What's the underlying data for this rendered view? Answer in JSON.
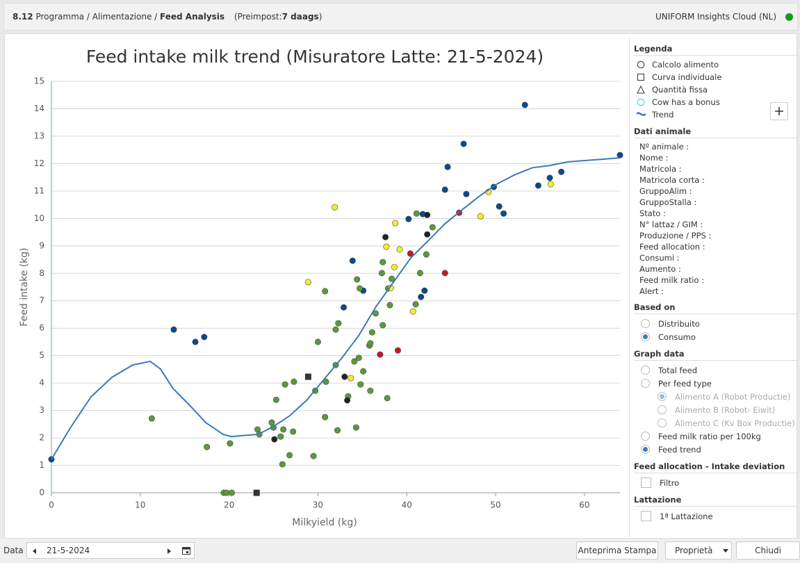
{
  "header": {
    "code": "8.12",
    "crumbs": "Programma / Alimentazione /",
    "page": "Feed Analysis",
    "preset_open": "(Preimpost:",
    "preset": "7 daags",
    "preset_close": ")",
    "app": "UNIFORM Insights Cloud (NL)"
  },
  "chart_data": {
    "type": "scatter",
    "title": "Feed intake milk trend (Misuratore Latte: 21-5-2024)",
    "x_label": "Milkyield (kg)",
    "y_label": "Feed intake (kg)",
    "xlim": [
      0,
      64
    ],
    "ylim": [
      0,
      15
    ],
    "xticks": [
      0,
      10,
      20,
      30,
      40,
      50,
      60
    ],
    "yticks": [
      0,
      1,
      2,
      3,
      4,
      5,
      6,
      7,
      8,
      9,
      10,
      11,
      12,
      13,
      14,
      15
    ],
    "grid": true,
    "series": [
      {
        "color": "#0b4a8c",
        "marker": "circle",
        "x": [
          0,
          13.77,
          16.2,
          17.2,
          33.9,
          32.9,
          35.1,
          40.2,
          41.8,
          41.6,
          42.0,
          44.3,
          44.6,
          46.4,
          46.7,
          49.8,
          50.4,
          50.9,
          53.3,
          54.8,
          56.1,
          57.4,
          64.0
        ],
        "values": [
          1.22,
          5.95,
          5.5,
          5.68,
          8.46,
          6.76,
          7.37,
          9.98,
          10.16,
          7.14,
          7.37,
          11.05,
          11.88,
          12.72,
          10.89,
          11.15,
          10.44,
          10.18,
          14.14,
          11.2,
          11.48,
          11.7,
          12.31
        ]
      },
      {
        "color": "#5b9a3b",
        "marker": "circle",
        "x": [
          11.3,
          17.5,
          20.1,
          19.4,
          19.7,
          20.3,
          23.2,
          23.4,
          24.8,
          25.0,
          25.3,
          25.8,
          26.1,
          26.0,
          26.3,
          26.8,
          27.2,
          27.3,
          29.5,
          29.7,
          30.0,
          30.8,
          30.8,
          30.9,
          32.0,
          32.0,
          32.3,
          32.2,
          33.4,
          34.1,
          34.3,
          34.4,
          34.6,
          34.7,
          34.8,
          35.1,
          35.8,
          35.9,
          36.1,
          35.9,
          36.5,
          37.2,
          37.3,
          37.3,
          37.9,
          37.8,
          38.1,
          38.3,
          41.0,
          41.1,
          41.5,
          42.2,
          42.9
        ],
        "values": [
          2.71,
          1.67,
          1.8,
          0,
          0,
          0,
          2.31,
          2.13,
          2.56,
          2.38,
          3.39,
          2.05,
          2.31,
          1.04,
          3.95,
          1.37,
          2.23,
          4.05,
          1.34,
          3.72,
          5.5,
          7.35,
          2.76,
          4.05,
          4.66,
          5.95,
          6.18,
          2.28,
          3.52,
          4.79,
          2.38,
          7.78,
          4.92,
          7.45,
          3.95,
          4.43,
          5.37,
          5.45,
          5.85,
          3.72,
          6.54,
          8.01,
          8.41,
          6.11,
          7.45,
          3.45,
          6.84,
          7.8,
          6.87,
          10.18,
          8.01,
          8.69,
          9.68
        ]
      },
      {
        "color": "#f4ef2a",
        "marker": "circle",
        "x": [
          31.9,
          28.9,
          33.7,
          37.7,
          38.7,
          39.2,
          38.6,
          38.2,
          40.7,
          48.3,
          49.2,
          56.2
        ],
        "values": [
          10.41,
          7.68,
          4.18,
          8.97,
          9.83,
          8.87,
          8.23,
          7.47,
          6.61,
          10.08,
          10.97,
          11.25
        ]
      },
      {
        "color": "#222222",
        "marker": "circle",
        "x": [
          37.6,
          42.3,
          42.3,
          33.0,
          33.3,
          25.1
        ],
        "values": [
          9.32,
          10.13,
          9.42,
          4.23,
          3.37,
          1.95
        ]
      },
      {
        "color": "#c01b26",
        "marker": "circle",
        "x": [
          40.4,
          45.9,
          44.3,
          39.0,
          37.0
        ],
        "values": [
          8.72,
          10.21,
          8.01,
          5.19,
          5.04
        ]
      },
      {
        "color": "#333333",
        "marker": "square",
        "x": [
          28.9,
          23.1
        ],
        "values": [
          4.23,
          0
        ]
      },
      {
        "color": "#3a7ab8",
        "marker": "line",
        "x": [
          0,
          2.11,
          4.46,
          6.81,
          9.15,
          11.11,
          12.28,
          13.69,
          15.41,
          17.37,
          19.33,
          20.27,
          21.28,
          23.24,
          24.8,
          26.76,
          28.72,
          30.67,
          32.63,
          34.59,
          36.54,
          38.5,
          40.45,
          42.41,
          44.37,
          46.32,
          48.28,
          50.23,
          52.19,
          54.15,
          56.1,
          58.06,
          60.02,
          61.97,
          64.01
        ],
        "values": [
          1.22,
          2.36,
          3.5,
          4.21,
          4.66,
          4.79,
          4.51,
          3.8,
          3.24,
          2.56,
          2.13,
          2.05,
          2.08,
          2.13,
          2.38,
          2.79,
          3.37,
          4.13,
          4.89,
          5.73,
          6.79,
          7.68,
          8.56,
          9.19,
          9.83,
          10.34,
          10.84,
          11.27,
          11.6,
          11.85,
          11.93,
          12.06,
          12.11,
          12.16,
          12.21
        ]
      }
    ],
    "legend": {
      "title": "Legenda",
      "items": [
        {
          "label": "Calcolo alimento",
          "icon": "circle"
        },
        {
          "label": "Curva individuale",
          "icon": "square"
        },
        {
          "label": "Quantità fissa",
          "icon": "triangle"
        },
        {
          "label": "Cow has a bonus",
          "icon": "cyan"
        },
        {
          "label": "Trend",
          "icon": "wave"
        }
      ]
    }
  },
  "sidebar": {
    "animal_title": "Dati animale",
    "animal_fields": [
      "Nº animale :",
      "Nome :",
      "Matricola :",
      "Matricola corta :",
      "GruppoAlim :",
      "GruppoStalla :",
      "Stato :",
      "N° lattaz / GIM :",
      "Produzione / PPS :",
      "Feed allocation :",
      "Consumi :",
      "Aumento :",
      "Feed milk ratio :",
      "Alert :"
    ],
    "based_title": "Based on",
    "based": [
      {
        "label": "Distribuito",
        "checked": false
      },
      {
        "label": "Consumo",
        "checked": true
      }
    ],
    "graph_title": "Graph data",
    "graph": [
      {
        "label": "Total feed",
        "checked": false
      },
      {
        "label": "Per feed type",
        "checked": false
      },
      {
        "label": "Alimento A (Robot Productie)",
        "checked": true,
        "sub": true
      },
      {
        "label": "Alimento B (Robot- Eiwit)",
        "checked": false,
        "sub": true
      },
      {
        "label": "Alimento C (Kv Box Productie)",
        "checked": false,
        "sub": true
      },
      {
        "label": "Feed milk ratio per 100kg",
        "checked": false
      },
      {
        "label": "Feed trend",
        "checked": true
      }
    ],
    "alloc_title": "Feed allocation - Intake deviation",
    "alloc_filter": "Filtro",
    "lact_title": "Lattazione",
    "lact_item": "1ª Lattazione"
  },
  "footer": {
    "date_label": "Data",
    "date": "21-5-2024",
    "print": "Anteprima Stampa",
    "props": "Proprietà",
    "close": "Chiudi"
  }
}
